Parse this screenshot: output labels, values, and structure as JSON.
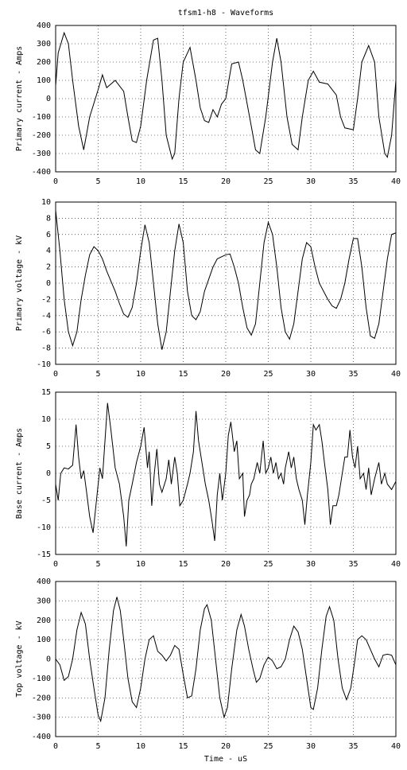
{
  "chart_data": [
    {
      "type": "line",
      "title": "tfsm1-h8 - Waveforms",
      "ylabel": "Primary current - Amps",
      "grid": true,
      "color": "#000000",
      "xlim": [
        0,
        40
      ],
      "xticks": [
        0,
        5,
        10,
        15,
        20,
        25,
        30,
        35,
        40
      ],
      "ylim": [
        -400,
        400
      ],
      "yticks": [
        -400,
        -300,
        -200,
        -100,
        0,
        100,
        200,
        300,
        400
      ],
      "x": [
        0,
        0.3,
        1,
        1.5,
        2,
        2.7,
        3.3,
        4,
        5,
        5.5,
        6,
        7,
        8,
        8.5,
        9,
        9.5,
        10,
        10.7,
        11.5,
        12,
        12.5,
        13,
        13.7,
        14,
        14.5,
        15,
        15.8,
        16.5,
        17,
        17.5,
        18,
        18.5,
        19,
        19.5,
        20,
        20.7,
        21.5,
        22,
        23,
        23.5,
        24,
        24.7,
        25.5,
        26,
        26.5,
        27.2,
        27.8,
        28.5,
        29,
        29.7,
        30.3,
        31,
        32,
        33,
        33.5,
        34,
        35,
        35.5,
        36,
        36.8,
        37.5,
        38,
        38.7,
        39,
        39.5,
        40
      ],
      "values": [
        70,
        250,
        360,
        300,
        100,
        -150,
        -280,
        -100,
        50,
        130,
        60,
        100,
        40,
        -100,
        -230,
        -240,
        -150,
        100,
        320,
        330,
        100,
        -200,
        -330,
        -300,
        0,
        200,
        280,
        100,
        -50,
        -120,
        -130,
        -60,
        -100,
        -30,
        0,
        190,
        200,
        100,
        -150,
        -280,
        -300,
        -100,
        200,
        330,
        200,
        -100,
        -250,
        -280,
        -100,
        100,
        150,
        90,
        80,
        20,
        -100,
        -160,
        -170,
        0,
        200,
        290,
        200,
        -100,
        -300,
        -320,
        -200,
        100
      ]
    },
    {
      "type": "line",
      "ylabel": "Primary voltage - kV",
      "grid": true,
      "color": "#000000",
      "xlim": [
        0,
        40
      ],
      "xticks": [
        0,
        5,
        10,
        15,
        20,
        25,
        30,
        35,
        40
      ],
      "ylim": [
        -10,
        10
      ],
      "yticks": [
        -10,
        -8,
        -6,
        -4,
        -2,
        0,
        2,
        4,
        6,
        8,
        10
      ],
      "x": [
        0,
        0.5,
        1,
        1.5,
        2,
        2.5,
        3,
        3.5,
        4,
        4.5,
        5,
        5.5,
        6,
        7,
        7.5,
        8,
        8.5,
        9,
        9.5,
        10,
        10.5,
        11,
        11.5,
        12,
        12.5,
        13,
        13.5,
        14,
        14.5,
        15,
        15.5,
        16,
        16.5,
        17,
        17.5,
        18,
        18.5,
        19,
        20,
        20.5,
        21,
        21.5,
        22,
        22.5,
        23,
        23.5,
        24,
        24.5,
        25,
        25.5,
        26,
        26.5,
        27,
        27.5,
        28,
        28.5,
        29,
        29.5,
        30,
        30.5,
        31,
        32,
        32.5,
        33,
        33.5,
        34,
        34.5,
        35,
        35.5,
        36,
        36.5,
        37,
        37.5,
        38,
        38.5,
        39,
        39.5,
        40
      ],
      "values": [
        9,
        4,
        -2,
        -6,
        -7.7,
        -6,
        -2,
        1,
        3.5,
        4.5,
        4,
        3,
        1.5,
        -1,
        -2.5,
        -3.8,
        -4.2,
        -3,
        0,
        4,
        7.2,
        5,
        0,
        -5,
        -8.2,
        -6,
        -1,
        4,
        7.3,
        5,
        -1,
        -4,
        -4.5,
        -3.5,
        -1,
        0.5,
        2,
        3,
        3.5,
        3.6,
        2,
        0,
        -3,
        -5.5,
        -6.4,
        -5,
        0,
        5,
        7.5,
        6,
        2,
        -3,
        -6,
        -6.9,
        -5,
        -1,
        3,
        5,
        4.5,
        2,
        0,
        -2,
        -2.8,
        -3.1,
        -2,
        0,
        3,
        5.5,
        5.5,
        2,
        -3,
        -6.5,
        -6.8,
        -5,
        -1,
        3,
        6,
        6.2
      ]
    },
    {
      "type": "line",
      "ylabel": "Base current - Amps",
      "grid": true,
      "color": "#000000",
      "xlim": [
        0,
        40
      ],
      "xticks": [
        0,
        5,
        10,
        15,
        20,
        25,
        30,
        35,
        40
      ],
      "ylim": [
        -15,
        15
      ],
      "yticks": [
        -15,
        -10,
        -5,
        0,
        5,
        10,
        15
      ],
      "x": [
        0,
        0.3,
        0.6,
        1,
        1.5,
        2,
        2.4,
        2.7,
        3,
        3.3,
        3.6,
        4,
        4.4,
        4.8,
        5.2,
        5.5,
        5.8,
        6.1,
        6.5,
        7,
        7.5,
        8,
        8.3,
        8.6,
        9,
        9.5,
        10,
        10.4,
        10.8,
        11,
        11.3,
        11.6,
        11.9,
        12.2,
        12.5,
        13,
        13.3,
        13.6,
        14,
        14.3,
        14.6,
        15,
        15.5,
        15.8,
        16.2,
        16.5,
        16.8,
        17.2,
        17.6,
        18,
        18.4,
        18.7,
        19,
        19.3,
        19.6,
        20,
        20.3,
        20.6,
        21,
        21.3,
        21.6,
        22,
        22.2,
        22.5,
        22.8,
        23,
        23.3,
        23.7,
        24,
        24.4,
        24.7,
        25,
        25.3,
        25.6,
        25.9,
        26.2,
        26.5,
        26.8,
        27,
        27.4,
        27.7,
        28,
        28.3,
        28.6,
        29,
        29.3,
        29.6,
        30,
        30.3,
        30.6,
        31,
        31.3,
        31.6,
        32,
        32.3,
        32.6,
        33,
        33.3,
        33.6,
        34,
        34.3,
        34.6,
        34.9,
        35.2,
        35.5,
        35.8,
        36.2,
        36.5,
        36.8,
        37.1,
        37.5,
        38,
        38.3,
        38.7,
        39,
        39.5,
        40
      ],
      "values": [
        -2,
        -5,
        0,
        1,
        0.8,
        1.5,
        9,
        3,
        -1,
        0.5,
        -3,
        -8,
        -11,
        -5,
        1,
        -1,
        6,
        13,
        8,
        1,
        -2,
        -8,
        -13.5,
        -5,
        -2,
        2,
        5,
        8.5,
        1,
        4,
        -6,
        0,
        4.5,
        -2,
        -3.5,
        -1,
        2.5,
        -2,
        3,
        0,
        -6,
        -5,
        -2,
        0,
        4,
        11.5,
        6,
        2,
        -2,
        -5,
        -9,
        -12.5,
        -4,
        0,
        -5,
        0,
        7,
        9.5,
        4,
        6,
        -1,
        0,
        -8,
        -5,
        -4,
        -2,
        -1,
        2,
        0,
        6,
        0,
        1,
        3,
        0,
        2,
        -1,
        0,
        -2,
        1,
        4,
        1,
        3,
        -1,
        -3,
        -5,
        -9.5,
        -4,
        2,
        9,
        8,
        9,
        6,
        2,
        -3,
        -9.5,
        -6,
        -6,
        -4,
        -1,
        3,
        3,
        8,
        3,
        1,
        5,
        -1,
        0,
        -3,
        1,
        -4,
        -1,
        2,
        -2,
        0,
        -2,
        -3,
        -1.5
      ]
    },
    {
      "type": "line",
      "ylabel": "Top voltage - kV",
      "xlabel": "Time - uS",
      "grid": true,
      "color": "#000000",
      "xlim": [
        0,
        40
      ],
      "xticks": [
        0,
        5,
        10,
        15,
        20,
        25,
        30,
        35,
        40
      ],
      "ylim": [
        -400,
        400
      ],
      "yticks": [
        -400,
        -300,
        -200,
        -100,
        0,
        100,
        200,
        300,
        400
      ],
      "x": [
        0,
        0.5,
        1,
        1.5,
        2,
        2.5,
        3,
        3.5,
        4,
        4.5,
        5,
        5.3,
        5.8,
        6.3,
        6.8,
        7.2,
        7.6,
        8,
        8.5,
        9,
        9.5,
        10,
        10.5,
        11,
        11.5,
        12,
        12.5,
        13,
        13.5,
        14,
        14.5,
        15,
        15.5,
        16,
        16.5,
        17,
        17.5,
        17.8,
        18.3,
        18.8,
        19.3,
        19.8,
        20.2,
        20.7,
        21.3,
        21.8,
        22.2,
        22.7,
        23.2,
        23.6,
        24,
        24.5,
        25,
        25.5,
        26,
        26.5,
        27,
        27.5,
        28,
        28.5,
        29,
        29.5,
        30,
        30.3,
        30.8,
        31.3,
        31.8,
        32.2,
        32.7,
        33.2,
        33.7,
        34.2,
        34.7,
        35.2,
        35.5,
        36,
        36.5,
        37,
        37.5,
        38,
        38.5,
        39,
        39.5,
        40
      ],
      "values": [
        0,
        -30,
        -110,
        -90,
        0,
        150,
        240,
        180,
        0,
        -150,
        -290,
        -320,
        -200,
        50,
        250,
        320,
        250,
        100,
        -100,
        -220,
        -250,
        -150,
        0,
        100,
        120,
        40,
        20,
        -10,
        20,
        70,
        50,
        -80,
        -200,
        -190,
        -50,
        150,
        260,
        280,
        200,
        0,
        -200,
        -300,
        -250,
        -50,
        150,
        230,
        170,
        50,
        -50,
        -120,
        -100,
        -30,
        10,
        -10,
        -50,
        -40,
        0,
        100,
        170,
        140,
        50,
        -100,
        -250,
        -260,
        -150,
        50,
        220,
        270,
        200,
        0,
        -150,
        -210,
        -150,
        0,
        100,
        120,
        100,
        50,
        0,
        -40,
        20,
        25,
        20,
        -30
      ]
    }
  ]
}
